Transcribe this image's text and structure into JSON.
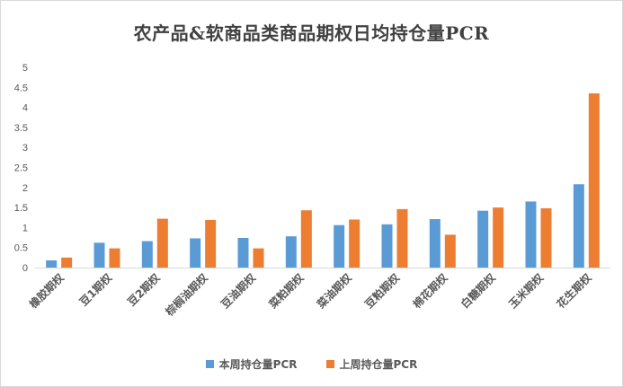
{
  "chart_data": {
    "type": "bar",
    "title": "农产品&软商品类商品期权日均持仓量PCR",
    "categories": [
      "橡胶期权",
      "豆1期权",
      "豆2期权",
      "棕榈油期权",
      "豆油期权",
      "菜粕期权",
      "菜油期权",
      "豆粕期权",
      "棉花期权",
      "白糖期权",
      "玉米期权",
      "花生期权"
    ],
    "series": [
      {
        "name": "本周持仓量PCR",
        "color": "#5b9bd5",
        "values": [
          0.18,
          0.62,
          0.66,
          0.73,
          0.74,
          0.78,
          1.06,
          1.08,
          1.21,
          1.42,
          1.65,
          2.08
        ]
      },
      {
        "name": "上周持仓量PCR",
        "color": "#ed7d31",
        "values": [
          0.25,
          0.48,
          1.22,
          1.19,
          0.48,
          1.43,
          1.2,
          1.46,
          0.82,
          1.5,
          1.48,
          4.35
        ]
      }
    ],
    "ylim": [
      0,
      5
    ],
    "yticks": [
      "0",
      "0.5",
      "1",
      "1.5",
      "2",
      "2.5",
      "3",
      "3.5",
      "4",
      "4.5",
      "5"
    ],
    "grid": false,
    "legend_position": "bottom"
  }
}
